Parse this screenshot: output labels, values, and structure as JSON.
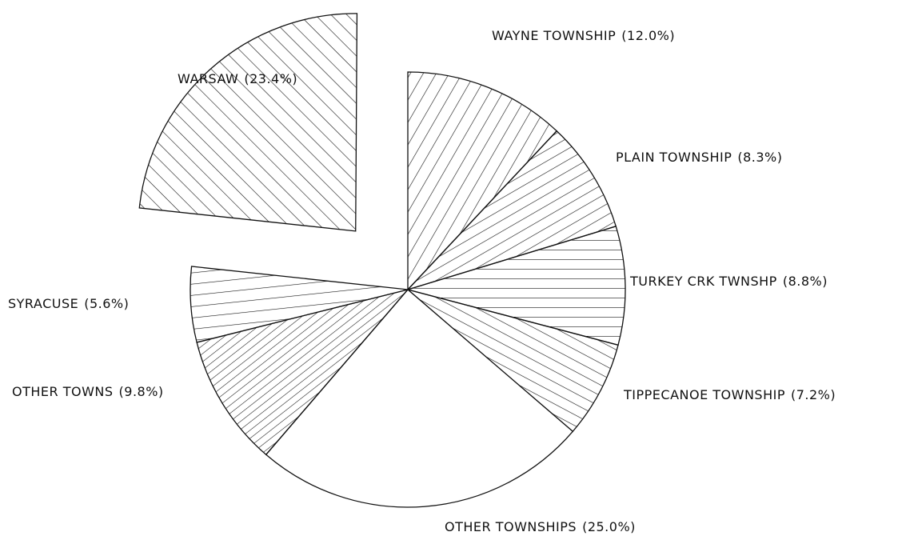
{
  "chart_data": {
    "type": "pie",
    "categories": [
      "WAYNE TOWNSHIP",
      "PLAIN TOWNSHIP",
      "TURKEY CRK TWNSHP",
      "TIPPECANOE TOWNSHIP",
      "OTHER TOWNSHIPS",
      "OTHER TOWNS",
      "SYRACUSE",
      "WARSAW"
    ],
    "values": [
      12.0,
      8.3,
      8.8,
      7.2,
      25.0,
      9.8,
      5.6,
      23.4
    ],
    "value_labels": [
      "(12.0%)",
      "(8.3%)",
      "(8.8%)",
      "(7.2%)",
      "(25.0%)",
      "(9.8%)",
      "(5.6%)",
      "(23.4%)"
    ]
  }
}
